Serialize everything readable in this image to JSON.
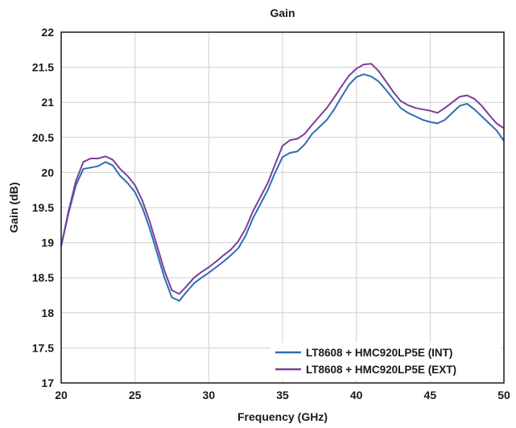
{
  "chart_data": {
    "type": "line",
    "title": "Gain",
    "xlabel": "Frequency (GHz)",
    "ylabel": "Gain (dB)",
    "xlim": [
      20,
      50
    ],
    "ylim": [
      17,
      22
    ],
    "xticks": [
      20,
      25,
      30,
      35,
      40,
      45,
      50
    ],
    "xtick_labels": [
      "20",
      "25",
      "30",
      "35",
      "40",
      "45",
      "50"
    ],
    "yticks": [
      17,
      17.5,
      18,
      18.5,
      19,
      19.5,
      20,
      20.5,
      21,
      21.5,
      22
    ],
    "ytick_labels": [
      "17",
      "17.5",
      "18",
      "18.5",
      "19",
      "19.5",
      "20",
      "20.5",
      "21",
      "21.5",
      "22"
    ],
    "grid": true,
    "legend_position": "bottom-right",
    "series": [
      {
        "name": "LT8608 + HMC920LP5E (INT)",
        "color": "#2e6db4",
        "x": [
          20,
          20.5,
          21,
          21.5,
          22,
          22.5,
          23,
          23.5,
          24,
          24.5,
          25,
          25.5,
          26,
          26.5,
          27,
          27.5,
          28,
          28.5,
          29,
          29.5,
          30,
          30.5,
          31,
          31.5,
          32,
          32.5,
          33,
          33.5,
          34,
          34.5,
          35,
          35.5,
          36,
          36.5,
          37,
          37.5,
          38,
          38.5,
          39,
          39.5,
          40,
          40.5,
          41,
          41.5,
          42,
          42.5,
          43,
          43.5,
          44,
          44.5,
          45,
          45.5,
          46,
          46.5,
          47,
          47.5,
          48,
          48.5,
          49,
          49.5,
          50
        ],
        "y": [
          18.95,
          19.42,
          19.82,
          20.05,
          20.07,
          20.09,
          20.15,
          20.1,
          19.95,
          19.85,
          19.72,
          19.5,
          19.2,
          18.85,
          18.5,
          18.22,
          18.17,
          18.3,
          18.42,
          18.5,
          18.57,
          18.65,
          18.73,
          18.82,
          18.92,
          19.1,
          19.35,
          19.55,
          19.75,
          20.0,
          20.22,
          20.28,
          20.3,
          20.4,
          20.55,
          20.65,
          20.75,
          20.9,
          21.08,
          21.25,
          21.36,
          21.4,
          21.37,
          21.3,
          21.18,
          21.05,
          20.92,
          20.85,
          20.8,
          20.75,
          20.72,
          20.7,
          20.75,
          20.85,
          20.95,
          20.98,
          20.9,
          20.8,
          20.7,
          20.6,
          20.45
        ]
      },
      {
        "name": "LT8608 + HMC920LP5E (EXT)",
        "color": "#7b3f98",
        "x": [
          20,
          20.5,
          21,
          21.5,
          22,
          22.5,
          23,
          23.5,
          24,
          24.5,
          25,
          25.5,
          26,
          26.5,
          27,
          27.5,
          28,
          28.5,
          29,
          29.5,
          30,
          30.5,
          31,
          31.5,
          32,
          32.5,
          33,
          33.5,
          34,
          34.5,
          35,
          35.5,
          36,
          36.5,
          37,
          37.5,
          38,
          38.5,
          39,
          39.5,
          40,
          40.5,
          41,
          41.5,
          42,
          42.5,
          43,
          43.5,
          44,
          44.5,
          45,
          45.5,
          46,
          46.5,
          47,
          47.5,
          48,
          48.5,
          49,
          49.5,
          50
        ],
        "y": [
          18.95,
          19.45,
          19.88,
          20.15,
          20.2,
          20.2,
          20.23,
          20.18,
          20.05,
          19.95,
          19.82,
          19.6,
          19.3,
          18.95,
          18.6,
          18.32,
          18.27,
          18.38,
          18.5,
          18.58,
          18.65,
          18.73,
          18.82,
          18.9,
          19.02,
          19.2,
          19.45,
          19.65,
          19.85,
          20.12,
          20.38,
          20.46,
          20.48,
          20.55,
          20.68,
          20.8,
          20.92,
          21.07,
          21.23,
          21.38,
          21.48,
          21.54,
          21.55,
          21.45,
          21.3,
          21.15,
          21.02,
          20.96,
          20.92,
          20.9,
          20.88,
          20.85,
          20.92,
          21.0,
          21.08,
          21.1,
          21.05,
          20.95,
          20.82,
          20.7,
          20.63
        ]
      }
    ]
  }
}
